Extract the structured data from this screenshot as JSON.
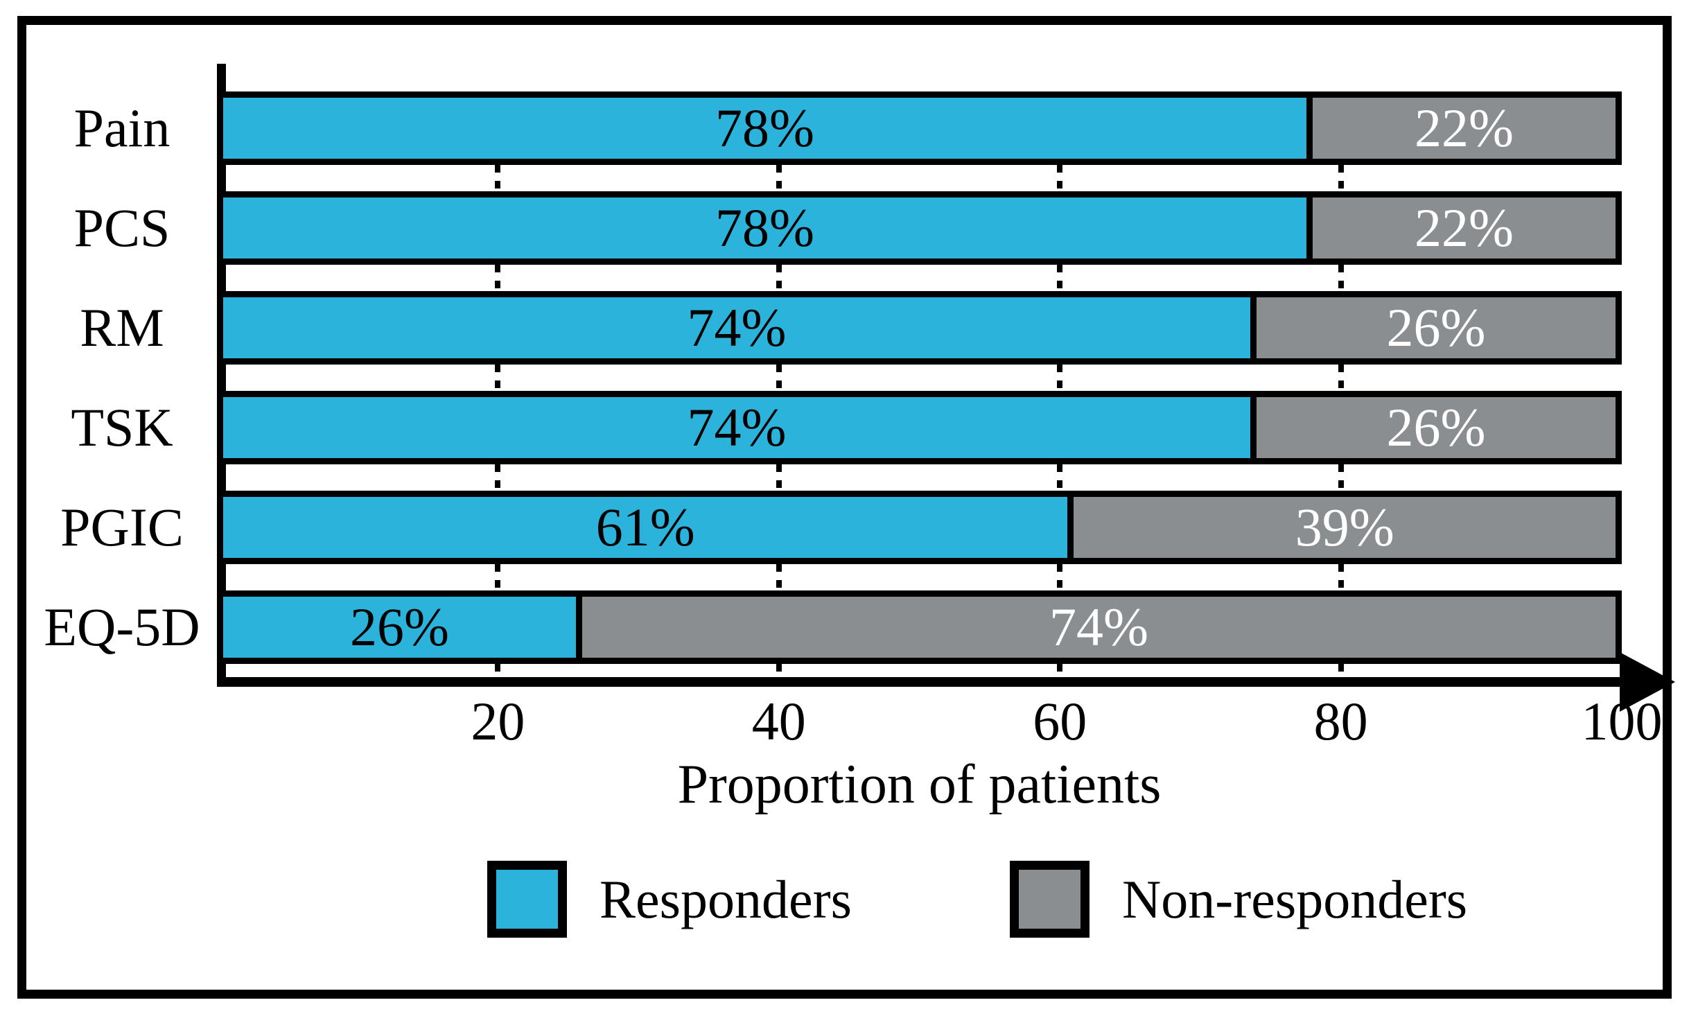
{
  "figure": {
    "background": "#FFFFFF",
    "frame_color": "#000000",
    "axis_color": "#000000"
  },
  "chart_data": {
    "type": "bar",
    "orientation": "horizontal-stacked",
    "categories": [
      "Pain",
      "PCS",
      "RM",
      "TSK",
      "PGIC",
      "EQ-5D"
    ],
    "series": [
      {
        "name": "Responders",
        "color": "#2BB3DC",
        "text_color": "#000000",
        "values": [
          78,
          78,
          74,
          74,
          61,
          26
        ],
        "labels": [
          "78%",
          "78%",
          "74%",
          "74%",
          "61%",
          "26%"
        ]
      },
      {
        "name": "Non-responders",
        "color": "#8B8E90",
        "text_color": "#FFFFFF",
        "values": [
          22,
          22,
          26,
          26,
          39,
          74
        ],
        "labels": [
          "22%",
          "22%",
          "26%",
          "26%",
          "39%",
          "74%"
        ]
      }
    ],
    "xlabel": "Proportion of patients",
    "xlim": [
      0,
      100
    ],
    "x_ticks": [
      20,
      40,
      60,
      80,
      100
    ],
    "x_tick_labels": [
      "20",
      "40",
      "60",
      "80",
      "100"
    ],
    "gridline_ticks": [
      20,
      40,
      60,
      80
    ],
    "gridline_style": "dotted",
    "grid": true,
    "legend_position": "bottom"
  }
}
